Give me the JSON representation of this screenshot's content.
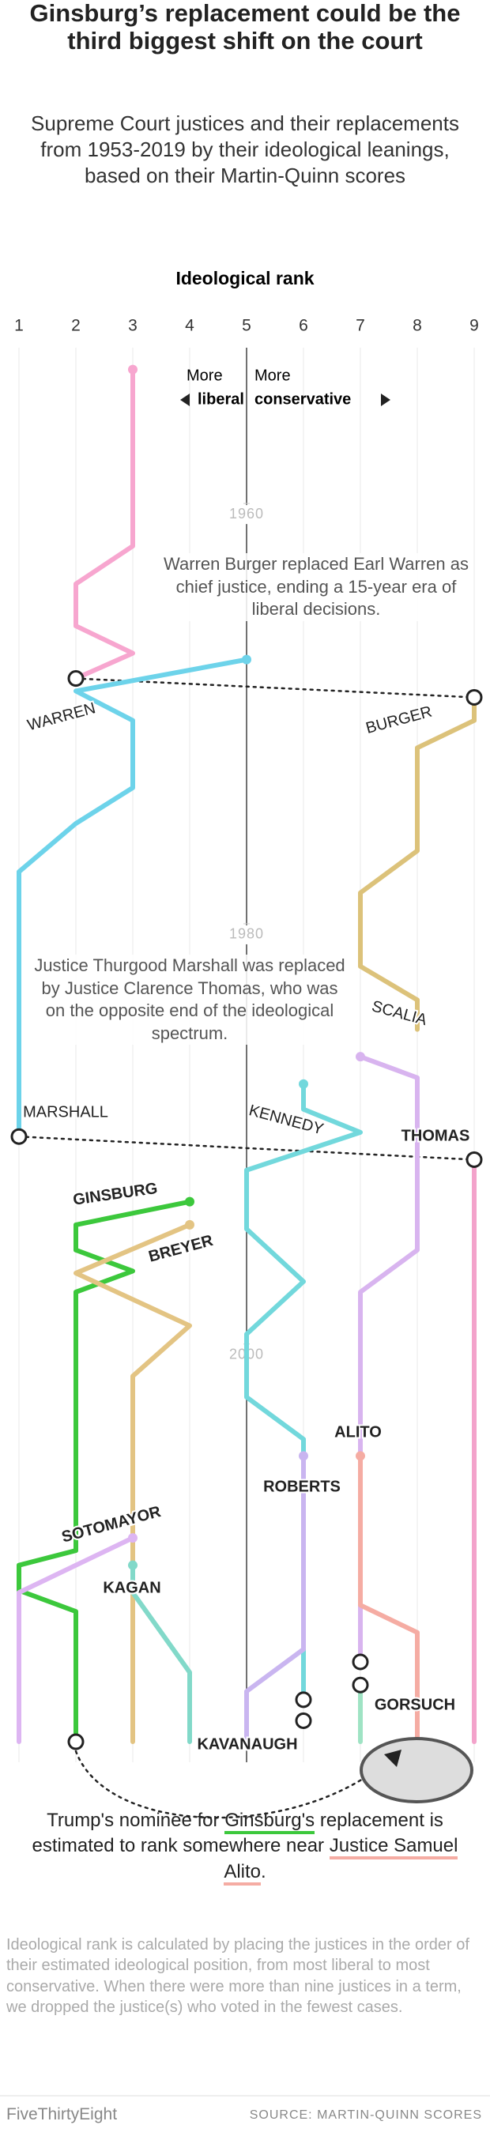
{
  "chart_data": {
    "type": "line",
    "orientation": "vertical",
    "title": "Ginsburg’s replacement could be the third biggest shift on the court",
    "subtitle": "Supreme Court justices and their replacements from 1953-2019 by their ideological leanings, based on their Martin-Quinn scores",
    "ylabel": "Ideological rank",
    "ylim": [
      1,
      9
    ],
    "yticks": [
      1,
      2,
      3,
      4,
      5,
      6,
      7,
      8,
      9
    ],
    "xlim": [
      1953,
      2019
    ],
    "xticks": [
      1960,
      1980,
      2000
    ],
    "direction_labels": {
      "left": [
        "More",
        "liberal"
      ],
      "right": [
        "More",
        "conservative"
      ]
    },
    "annotations": [
      "Warren Burger replaced Earl Warren as chief justice, ending a 15-year era of liberal decisions.",
      "Justice Thurgood Marshall was replaced by Justice Clarence Thomas, who was on the opposite end of the ideological spectrum."
    ],
    "series": [
      {
        "name": "WARREN",
        "color": "#f7a6cf",
        "x": [
          1953.1,
          1961.5,
          1963.3,
          1965.3,
          1966.6,
          1967.8
        ],
        "values": [
          3,
          3,
          2,
          2,
          3,
          2
        ]
      },
      {
        "name": "MARSHALL",
        "color": "#6dd3ea",
        "x": [
          1966.9,
          1968.4,
          1969.8,
          1973,
          1974.7,
          1977,
          1989.6
        ],
        "values": [
          5,
          2,
          3,
          3,
          2,
          1,
          1
        ]
      },
      {
        "name": "BURGER",
        "color": "#dcc27a",
        "x": [
          1968.7,
          1969.8,
          1971.1,
          1976,
          1978,
          1981.5,
          1983.1,
          1984.5
        ],
        "values": [
          9,
          9,
          8,
          8,
          7,
          7,
          8,
          8
        ]
      },
      {
        "name": "THOMAS",
        "color": "#f3a3cb",
        "x": [
          1990.7,
          2018.4
        ],
        "values": [
          9,
          9
        ]
      },
      {
        "name": "SCALIA",
        "color": "#d8b4ef",
        "x": [
          1985.8,
          1986.8,
          1995,
          1997,
          2014.6
        ],
        "values": [
          7,
          8,
          8,
          7,
          7
        ]
      },
      {
        "name": "KENNEDY",
        "color": "#72d8dc",
        "x": [
          1987.1,
          1988.3,
          1989.4,
          1991.2,
          1994,
          1996.5,
          1999,
          2002,
          2004,
          2015.5,
          2016.4
        ],
        "values": [
          6,
          6,
          7,
          5,
          5,
          6,
          5,
          5,
          6,
          6,
          6
        ]
      },
      {
        "name": "GINSBURG",
        "color": "#3cc83c",
        "x": [
          1992.7,
          1993.8,
          1995,
          1996,
          1997,
          2009.3,
          2010,
          2011.2,
          2012.2,
          2018.4
        ],
        "values": [
          4,
          2,
          2,
          3,
          2,
          2,
          1,
          1,
          2,
          2
        ]
      },
      {
        "name": "BREYER",
        "color": "#e3c483",
        "x": [
          1993.8,
          1996.1,
          1998.6,
          2001,
          2018.4
        ],
        "values": [
          4,
          2,
          4,
          3,
          3
        ]
      },
      {
        "name": "SOTOMAYOR",
        "color": "#ddb5f2",
        "x": [
          2008.7,
          2011.3,
          2018.4
        ],
        "values": [
          3,
          1,
          1
        ]
      },
      {
        "name": "KAGAN",
        "color": "#82d9c9",
        "x": [
          2010,
          2011.3,
          2015.1,
          2018.4
        ],
        "values": [
          3,
          3,
          4,
          4
        ]
      },
      {
        "name": "ROBERTS",
        "color": "#c9b5f0",
        "x": [
          2004.8,
          2014,
          2016,
          2018.4
        ],
        "values": [
          6,
          6,
          5,
          5
        ]
      },
      {
        "name": "ALITO",
        "color": "#f5aca3",
        "x": [
          2004.8,
          2011.9,
          2013.2,
          2018.4
        ],
        "values": [
          7,
          7,
          8,
          8
        ]
      },
      {
        "name": "GORSUCH",
        "color": "#9fe3c4",
        "x": [
          2015.7,
          2018.4
        ],
        "values": [
          7,
          7
        ]
      },
      {
        "name": "KAVANAUGH",
        "color": "#222222",
        "x": [
          2017.4
        ],
        "values": [
          6
        ]
      }
    ],
    "note": [
      "Trump's nominee for ",
      "Ginsburg's",
      " replacement is estimated to rank somewhere near ",
      "Justice Samuel Alito",
      "."
    ],
    "footnote": "Ideological rank is calculated by placing the justices in the order of their estimated ideological position, from most liberal to most conservative. When there were more than nine justices in a term, we dropped the justice(s) who voted in the fewest cases.",
    "brand": "FiveThirtyEight",
    "source": "SOURCE: MARTIN-QUINN SCORES"
  }
}
